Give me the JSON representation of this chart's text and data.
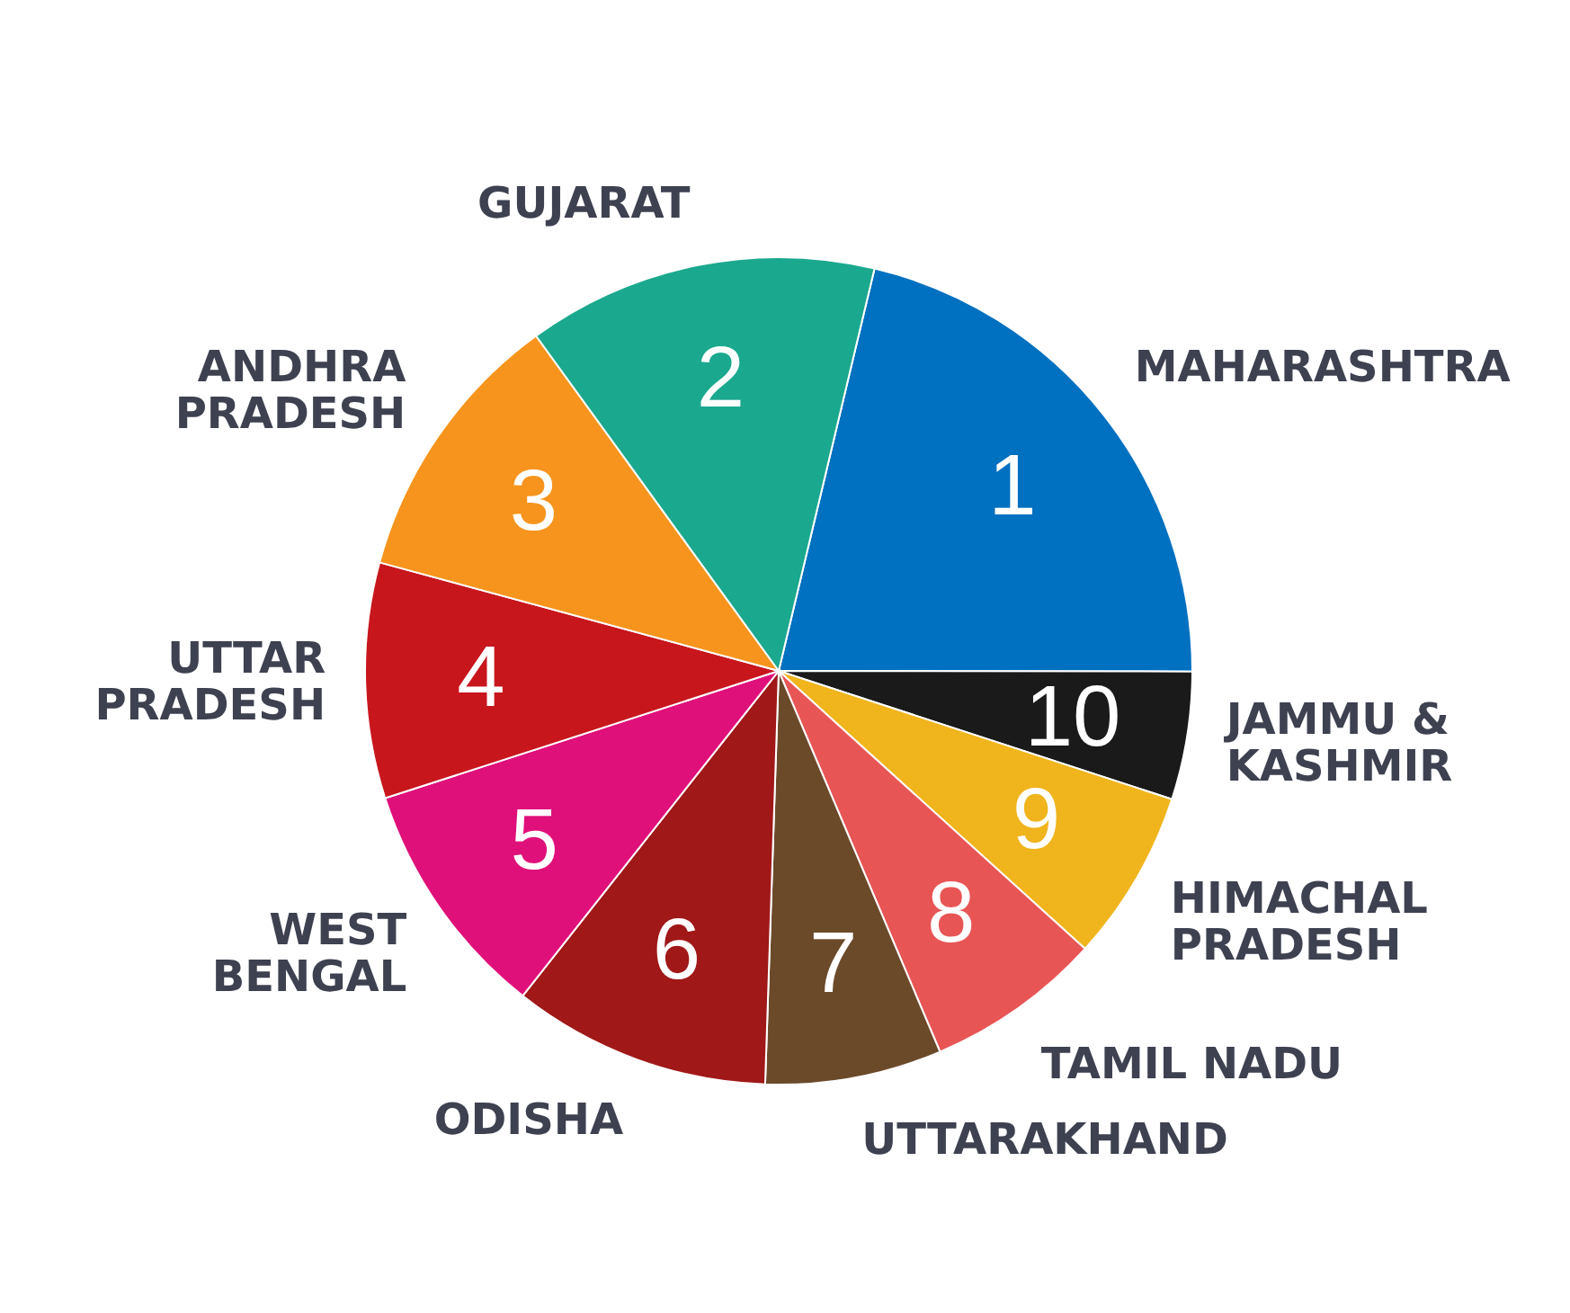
{
  "chart_data": {
    "type": "pie",
    "categories": [
      "MAHARASHTRA",
      "JAMMU & KASHMIR",
      "HIMACHAL PRADESH",
      "TAMIL NADU",
      "UTTARAKHAND",
      "ODISHA",
      "WEST BENGAL",
      "UTTAR PRADESH",
      "ANDHRA PRADESH",
      "GUJARAT"
    ],
    "values": [
      21.3,
      5.0,
      6.7,
      6.9,
      6.9,
      10.1,
      9.4,
      9.2,
      10.8,
      13.7
    ],
    "colors": [
      "#0070c0",
      "#1a1a1a",
      "#f0b41c",
      "#e85555",
      "#6b4a2a",
      "#a01818",
      "#e0107a",
      "#c8161d",
      "#f7941d",
      "#1aa88e"
    ],
    "annotations": [
      "1",
      "10",
      "9",
      "8",
      "7",
      "6",
      "5",
      "4",
      "3",
      "2"
    ]
  }
}
